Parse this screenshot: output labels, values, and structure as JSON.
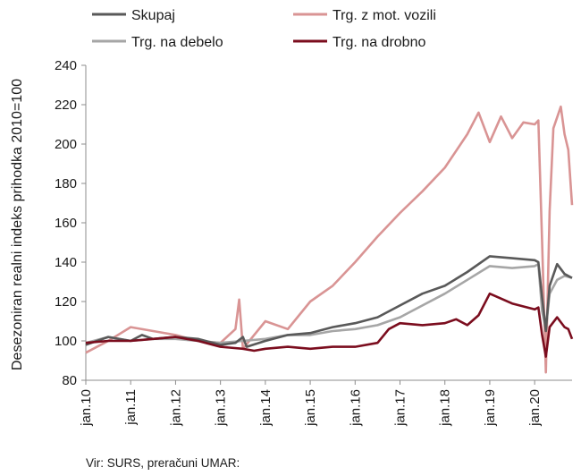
{
  "chart_data": {
    "type": "line",
    "title": "",
    "xlabel": "",
    "ylabel": "Desezoniran realni indeks prihodka 2010=100",
    "ylim": [
      80,
      240
    ],
    "yticks": [
      80,
      100,
      120,
      140,
      160,
      180,
      200,
      220,
      240
    ],
    "x_tick_labels": [
      "jan.10",
      "jan.11",
      "jan.12",
      "jan.13",
      "jan.14",
      "jan.15",
      "jan.16",
      "jan.17",
      "jan.18",
      "jan.19",
      "jan.20"
    ],
    "x_range": [
      "2010-01",
      "2020-11"
    ],
    "grid": false,
    "legend_position": "top",
    "source": "Vir: SURS, preračuni UMAR:",
    "series": [
      {
        "name": "Skupaj",
        "color": "#595959",
        "points": [
          [
            "2010-01",
            98
          ],
          [
            "2010-07",
            102
          ],
          [
            "2011-01",
            100
          ],
          [
            "2011-04",
            103
          ],
          [
            "2011-07",
            101
          ],
          [
            "2012-01",
            102
          ],
          [
            "2012-07",
            101
          ],
          [
            "2013-01",
            98
          ],
          [
            "2013-05",
            99
          ],
          [
            "2013-07",
            102
          ],
          [
            "2013-08",
            97
          ],
          [
            "2014-01",
            100
          ],
          [
            "2014-07",
            103
          ],
          [
            "2015-01",
            104
          ],
          [
            "2015-07",
            107
          ],
          [
            "2016-01",
            109
          ],
          [
            "2016-07",
            112
          ],
          [
            "2017-01",
            118
          ],
          [
            "2017-07",
            124
          ],
          [
            "2018-01",
            128
          ],
          [
            "2018-07",
            135
          ],
          [
            "2019-01",
            143
          ],
          [
            "2019-07",
            142
          ],
          [
            "2020-01",
            141
          ],
          [
            "2020-02",
            140
          ],
          [
            "2020-03",
            122
          ],
          [
            "2020-04",
            105
          ],
          [
            "2020-05",
            128
          ],
          [
            "2020-07",
            139
          ],
          [
            "2020-09",
            134
          ],
          [
            "2020-11",
            132
          ]
        ]
      },
      {
        "name": "Trg. z mot. vozili",
        "color": "#d99494",
        "points": [
          [
            "2010-01",
            94
          ],
          [
            "2010-07",
            100
          ],
          [
            "2011-01",
            107
          ],
          [
            "2011-07",
            105
          ],
          [
            "2012-01",
            103
          ],
          [
            "2012-07",
            100
          ],
          [
            "2013-01",
            99
          ],
          [
            "2013-05",
            106
          ],
          [
            "2013-06",
            121
          ],
          [
            "2013-07",
            96
          ],
          [
            "2014-01",
            110
          ],
          [
            "2014-07",
            106
          ],
          [
            "2015-01",
            120
          ],
          [
            "2015-07",
            128
          ],
          [
            "2016-01",
            140
          ],
          [
            "2016-07",
            153
          ],
          [
            "2017-01",
            165
          ],
          [
            "2017-07",
            176
          ],
          [
            "2018-01",
            188
          ],
          [
            "2018-07",
            205
          ],
          [
            "2018-10",
            216
          ],
          [
            "2019-01",
            201
          ],
          [
            "2019-04",
            214
          ],
          [
            "2019-07",
            203
          ],
          [
            "2019-10",
            211
          ],
          [
            "2020-01",
            210
          ],
          [
            "2020-02",
            212
          ],
          [
            "2020-03",
            150
          ],
          [
            "2020-04",
            84
          ],
          [
            "2020-05",
            166
          ],
          [
            "2020-06",
            208
          ],
          [
            "2020-08",
            219
          ],
          [
            "2020-09",
            205
          ],
          [
            "2020-10",
            197
          ],
          [
            "2020-11",
            169
          ]
        ]
      },
      {
        "name": "Trg. na debelo",
        "color": "#a6a6a6",
        "points": [
          [
            "2010-01",
            99
          ],
          [
            "2010-07",
            102
          ],
          [
            "2011-01",
            100
          ],
          [
            "2011-07",
            101
          ],
          [
            "2012-01",
            101
          ],
          [
            "2012-07",
            100
          ],
          [
            "2013-01",
            99
          ],
          [
            "2013-07",
            100
          ],
          [
            "2014-01",
            101
          ],
          [
            "2014-07",
            103
          ],
          [
            "2015-01",
            103
          ],
          [
            "2015-07",
            105
          ],
          [
            "2016-01",
            106
          ],
          [
            "2016-07",
            108
          ],
          [
            "2017-01",
            112
          ],
          [
            "2017-07",
            118
          ],
          [
            "2018-01",
            124
          ],
          [
            "2018-07",
            131
          ],
          [
            "2019-01",
            138
          ],
          [
            "2019-07",
            137
          ],
          [
            "2020-01",
            138
          ],
          [
            "2020-02",
            139
          ],
          [
            "2020-03",
            115
          ],
          [
            "2020-04",
            106
          ],
          [
            "2020-05",
            124
          ],
          [
            "2020-07",
            131
          ],
          [
            "2020-09",
            133
          ],
          [
            "2020-11",
            132
          ]
        ]
      },
      {
        "name": "Trg. na drobno",
        "color": "#7b0d1e",
        "points": [
          [
            "2010-01",
            99
          ],
          [
            "2010-07",
            100
          ],
          [
            "2011-01",
            100
          ],
          [
            "2011-07",
            101
          ],
          [
            "2012-01",
            102
          ],
          [
            "2012-07",
            100
          ],
          [
            "2013-01",
            97
          ],
          [
            "2013-07",
            96
          ],
          [
            "2013-10",
            95
          ],
          [
            "2014-01",
            96
          ],
          [
            "2014-07",
            97
          ],
          [
            "2015-01",
            96
          ],
          [
            "2015-07",
            97
          ],
          [
            "2016-01",
            97
          ],
          [
            "2016-07",
            99
          ],
          [
            "2016-10",
            106
          ],
          [
            "2017-01",
            109
          ],
          [
            "2017-07",
            108
          ],
          [
            "2018-01",
            109
          ],
          [
            "2018-04",
            111
          ],
          [
            "2018-07",
            108
          ],
          [
            "2018-10",
            113
          ],
          [
            "2019-01",
            124
          ],
          [
            "2019-07",
            119
          ],
          [
            "2020-01",
            116
          ],
          [
            "2020-02",
            117
          ],
          [
            "2020-03",
            103
          ],
          [
            "2020-04",
            92
          ],
          [
            "2020-05",
            107
          ],
          [
            "2020-07",
            112
          ],
          [
            "2020-09",
            107
          ],
          [
            "2020-10",
            106
          ],
          [
            "2020-11",
            101
          ]
        ]
      }
    ]
  }
}
